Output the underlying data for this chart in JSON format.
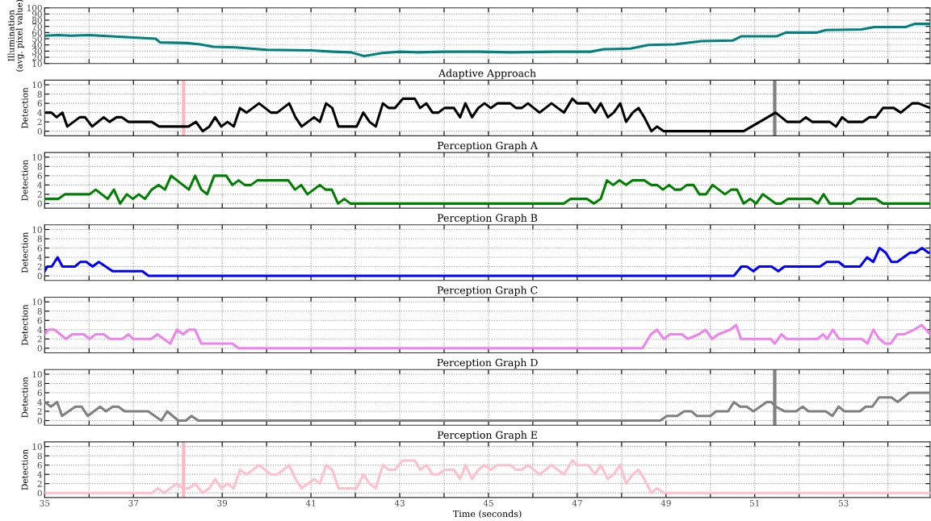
{
  "chart_data": [
    {
      "type": "line",
      "ylabel": "Illumination\n(avg. pixel value)",
      "xlim": [
        35,
        54.95
      ],
      "ylim": [
        10,
        100
      ],
      "yticks": [
        10,
        20,
        30,
        40,
        50,
        60,
        70,
        80,
        90,
        100
      ],
      "xticks": [
        35,
        {
          "value": 36,
          "label": null
        },
        37,
        {
          "value": 38,
          "label": null
        },
        39,
        {
          "value": 40,
          "label": null
        },
        41,
        {
          "value": 42,
          "label": null
        },
        43,
        {
          "value": 44,
          "label": null
        },
        45,
        {
          "value": 46,
          "label": null
        },
        47,
        {
          "value": 48,
          "label": null
        },
        49,
        {
          "value": 50,
          "label": null
        },
        51,
        {
          "value": 52,
          "label": null
        },
        53,
        {
          "value": 54,
          "label": null
        }
      ],
      "tick_labels": "y",
      "grid": true,
      "series": [
        {
          "color": "#008080",
          "x": [
            35.0,
            35.3,
            35.6,
            36.0,
            36.5,
            37.0,
            37.5,
            37.6,
            38.2,
            38.5,
            38.8,
            39.3,
            40.0,
            41.0,
            41.5,
            41.9,
            42.2,
            42.6,
            43.0,
            43.4,
            44.0,
            44.8,
            45.5,
            46.5,
            47.3,
            47.6,
            48.2,
            48.6,
            49.2,
            49.8,
            50.5,
            50.7,
            51.5,
            51.7,
            52.4,
            52.6,
            53.4,
            53.7,
            54.4,
            54.6,
            54.95
          ],
          "values": [
            55,
            56,
            55,
            56,
            54,
            52,
            50,
            44,
            43,
            41,
            37,
            36,
            32,
            31,
            29,
            28,
            22,
            27,
            29,
            28,
            29,
            29,
            28,
            29,
            29,
            33,
            34,
            40,
            41,
            46,
            47,
            54,
            54,
            60,
            60,
            64,
            65,
            69,
            69,
            74,
            74
          ]
        }
      ]
    },
    {
      "type": "line",
      "title": "Adaptive Approach",
      "ylabel": "Detection",
      "xlim": [
        35,
        54.95
      ],
      "ylim": [
        -1,
        11
      ],
      "yticks": [
        0,
        2,
        4,
        6,
        8,
        10
      ],
      "xticks": [
        35,
        {
          "value": 36,
          "label": null
        },
        37,
        {
          "value": 38,
          "label": null
        },
        39,
        {
          "value": 40,
          "label": null
        },
        41,
        {
          "value": 42,
          "label": null
        },
        43,
        {
          "value": 44,
          "label": null
        },
        45,
        {
          "value": 46,
          "label": null
        },
        47,
        {
          "value": 48,
          "label": null
        },
        49,
        {
          "value": 50,
          "label": null
        },
        51,
        {
          "value": 52,
          "label": null
        },
        53,
        {
          "value": 54,
          "label": null
        }
      ],
      "tick_labels": "y",
      "grid": true,
      "ref_lines": [
        {
          "axis": "x",
          "value": 38.13,
          "color": "#ffb6c1"
        },
        {
          "axis": "x",
          "value": 51.45,
          "color": "#808080"
        }
      ],
      "series": [
        {
          "color": "#000000",
          "x": [
            35.03,
            35.15,
            35.27,
            35.4,
            35.51,
            35.65,
            35.79,
            35.91,
            36.07,
            36.2,
            36.33,
            36.46,
            36.62,
            36.74,
            36.89,
            37.41,
            37.58,
            38.1,
            38.24,
            38.41,
            38.56,
            38.71,
            38.84,
            38.98,
            39.12,
            39.26,
            39.4,
            39.55,
            39.83,
            40.1,
            40.24,
            40.51,
            40.65,
            40.79,
            41.07,
            41.2,
            41.34,
            41.48,
            41.62,
            42.03,
            42.18,
            42.32,
            42.46,
            42.62,
            42.75,
            42.89,
            43.07,
            43.34,
            43.46,
            43.6,
            43.74,
            43.87,
            44.01,
            44.22,
            44.36,
            44.48,
            44.63,
            44.77,
            44.91,
            45.05,
            45.2,
            45.49,
            45.62,
            45.75,
            45.89,
            46.15,
            46.42,
            46.7,
            46.89,
            47.0,
            47.25,
            47.4,
            47.53,
            47.69,
            47.82,
            47.97,
            48.1,
            48.25,
            48.38,
            48.51,
            48.67,
            48.8,
            48.95,
            50.75,
            51.47,
            51.73,
            52.02,
            52.15,
            52.3,
            52.69,
            52.83,
            52.97,
            53.1,
            53.43,
            53.58,
            53.73,
            53.89,
            54.13,
            54.29,
            54.55,
            54.69,
            54.95
          ],
          "values": [
            4,
            4,
            3,
            4,
            1,
            2,
            3,
            3,
            1,
            2,
            3,
            2,
            3,
            3,
            2,
            2,
            1,
            1,
            1,
            2,
            0,
            1,
            3,
            1,
            2,
            1,
            5,
            4,
            6,
            4,
            4,
            6,
            3,
            1,
            3,
            2,
            6,
            5,
            1,
            1,
            4,
            2,
            1,
            6,
            5,
            5,
            7,
            7,
            5,
            6,
            4,
            4,
            5,
            5,
            3,
            6,
            3,
            5,
            6,
            5,
            6,
            6,
            5,
            5,
            6,
            4,
            6,
            4,
            7,
            6,
            6,
            4,
            6,
            3,
            4,
            6,
            2,
            4,
            5,
            3,
            0,
            1,
            0,
            0,
            4,
            2,
            2,
            3,
            2,
            2,
            1,
            3,
            2,
            2,
            3,
            3,
            5,
            5,
            4,
            6,
            6,
            5
          ]
        }
      ]
    },
    {
      "type": "line",
      "title": "Perception Graph A",
      "ylabel": "Detection",
      "xlim": [
        35,
        54.95
      ],
      "ylim": [
        -1,
        11
      ],
      "yticks": [
        0,
        2,
        4,
        6,
        8,
        10
      ],
      "xticks": [
        35,
        {
          "value": 36,
          "label": null
        },
        37,
        {
          "value": 38,
          "label": null
        },
        39,
        {
          "value": 40,
          "label": null
        },
        41,
        {
          "value": 42,
          "label": null
        },
        43,
        {
          "value": 44,
          "label": null
        },
        45,
        {
          "value": 46,
          "label": null
        },
        47,
        {
          "value": 48,
          "label": null
        },
        49,
        {
          "value": 50,
          "label": null
        },
        51,
        {
          "value": 52,
          "label": null
        },
        53,
        {
          "value": 54,
          "label": null
        }
      ],
      "tick_labels": "y",
      "grid": true,
      "series": [
        {
          "color": "#008000",
          "x": [
            35.0,
            35.31,
            35.46,
            36.01,
            36.15,
            36.42,
            36.56,
            36.7,
            36.85,
            36.99,
            37.12,
            37.26,
            37.41,
            37.57,
            37.71,
            37.85,
            37.98,
            38.25,
            38.39,
            38.53,
            38.66,
            38.82,
            39.09,
            39.23,
            39.37,
            39.51,
            39.65,
            39.79,
            40.49,
            40.64,
            40.78,
            40.92,
            41.2,
            41.33,
            41.47,
            41.61,
            41.75,
            41.89,
            46.7,
            46.85,
            47.22,
            47.38,
            47.53,
            47.67,
            47.81,
            47.95,
            48.1,
            48.25,
            48.51,
            48.67,
            48.8,
            48.93,
            49.07,
            49.2,
            49.33,
            49.47,
            49.62,
            49.75,
            49.9,
            50.05,
            50.33,
            50.47,
            50.6,
            50.75,
            50.9,
            51.03,
            51.18,
            51.47,
            51.6,
            51.75,
            52.27,
            52.42,
            52.55,
            52.69,
            53.17,
            53.31,
            53.73,
            53.89,
            54.95
          ],
          "values": [
            1,
            1,
            2,
            2,
            3,
            1,
            3,
            0,
            2,
            1,
            2,
            1,
            3,
            4,
            3,
            6,
            5,
            3,
            6,
            3,
            2,
            6,
            6,
            4,
            5,
            4,
            4,
            5,
            5,
            3,
            4,
            2,
            4,
            3,
            3,
            0,
            1,
            0,
            0,
            1,
            1,
            0,
            1,
            5,
            4,
            5,
            4,
            5,
            5,
            4,
            4,
            3,
            4,
            3,
            3,
            4,
            4,
            2,
            2,
            4,
            2,
            3,
            3,
            0,
            1,
            0,
            2,
            0,
            0,
            1,
            1,
            0,
            2,
            0,
            0,
            1,
            1,
            0,
            0
          ]
        }
      ]
    },
    {
      "type": "line",
      "title": "Perception Graph B",
      "ylabel": "Detection",
      "xlim": [
        35,
        54.95
      ],
      "ylim": [
        -1,
        11
      ],
      "yticks": [
        0,
        2,
        4,
        6,
        8,
        10
      ],
      "xticks": [
        35,
        {
          "value": 36,
          "label": null
        },
        37,
        {
          "value": 38,
          "label": null
        },
        39,
        {
          "value": 40,
          "label": null
        },
        41,
        {
          "value": 42,
          "label": null
        },
        43,
        {
          "value": 44,
          "label": null
        },
        45,
        {
          "value": 46,
          "label": null
        },
        47,
        {
          "value": 48,
          "label": null
        },
        49,
        {
          "value": 50,
          "label": null
        },
        51,
        {
          "value": 52,
          "label": null
        },
        53,
        {
          "value": 54,
          "label": null
        }
      ],
      "tick_labels": "y",
      "grid": true,
      "series": [
        {
          "color": "#0000ff",
          "x": [
            35.0,
            35.06,
            35.16,
            35.29,
            35.4,
            35.68,
            35.8,
            35.94,
            36.08,
            36.22,
            36.53,
            37.2,
            37.34,
            50.53,
            50.7,
            50.82,
            50.97,
            51.1,
            51.38,
            51.53,
            51.67,
            52.47,
            52.62,
            52.89,
            53.02,
            53.37,
            53.53,
            53.67,
            53.81,
            53.95,
            54.08,
            54.21,
            54.5,
            54.62,
            54.77,
            54.91,
            54.95
          ],
          "values": [
            1,
            2,
            2,
            4,
            2,
            2,
            3,
            3,
            2,
            3,
            1,
            1,
            0,
            0,
            2,
            2,
            1,
            2,
            2,
            1,
            2,
            2,
            3,
            3,
            2,
            2,
            4,
            3,
            6,
            5,
            3,
            3,
            5,
            5,
            6,
            5,
            5
          ]
        }
      ]
    },
    {
      "type": "line",
      "title": "Perception Graph C",
      "ylabel": "Detection",
      "xlim": [
        35,
        54.95
      ],
      "ylim": [
        -1,
        11
      ],
      "yticks": [
        0,
        2,
        4,
        6,
        8,
        10
      ],
      "xticks": [
        35,
        {
          "value": 36,
          "label": null
        },
        37,
        {
          "value": 38,
          "label": null
        },
        39,
        {
          "value": 40,
          "label": null
        },
        41,
        {
          "value": 42,
          "label": null
        },
        43,
        {
          "value": 44,
          "label": null
        },
        45,
        {
          "value": 46,
          "label": null
        },
        47,
        {
          "value": 48,
          "label": null
        },
        49,
        {
          "value": 50,
          "label": null
        },
        51,
        {
          "value": 52,
          "label": null
        },
        53,
        {
          "value": 54,
          "label": null
        }
      ],
      "tick_labels": "y",
      "grid": true,
      "series": [
        {
          "color": "#ee82ee",
          "x": [
            35.0,
            35.08,
            35.22,
            35.48,
            35.62,
            35.88,
            36.01,
            36.15,
            36.33,
            36.47,
            36.75,
            36.89,
            36.99,
            37.4,
            37.54,
            37.68,
            37.83,
            37.98,
            38.12,
            38.25,
            38.39,
            38.53,
            39.23,
            39.37,
            48.47,
            48.66,
            48.8,
            48.95,
            49.09,
            49.36,
            49.49,
            49.74,
            49.89,
            50.04,
            50.18,
            50.45,
            50.58,
            50.69,
            51.36,
            51.45,
            51.6,
            51.72,
            52.41,
            52.54,
            52.63,
            52.76,
            52.9,
            53.41,
            53.54,
            53.67,
            53.81,
            53.94,
            54.06,
            54.21,
            54.36,
            54.59,
            54.76,
            54.86,
            54.95
          ],
          "values": [
            3,
            4,
            4,
            2,
            3,
            3,
            2,
            3,
            3,
            2,
            2,
            3,
            2,
            2,
            3,
            2,
            1,
            4,
            3,
            4,
            4,
            1,
            1,
            0,
            0,
            3,
            4,
            2,
            3,
            3,
            2,
            3,
            4,
            2,
            3,
            4,
            5,
            2,
            2,
            1,
            3,
            2,
            2,
            3,
            2,
            4,
            2,
            2,
            1,
            4,
            2,
            1,
            1,
            3,
            3,
            4,
            5,
            4,
            3
          ]
        }
      ]
    },
    {
      "type": "line",
      "title": "Perception Graph D",
      "ylabel": "Detection",
      "xlim": [
        35,
        54.95
      ],
      "ylim": [
        -1,
        11
      ],
      "yticks": [
        0,
        2,
        4,
        6,
        8,
        10
      ],
      "xticks": [
        35,
        {
          "value": 36,
          "label": null
        },
        37,
        {
          "value": 38,
          "label": null
        },
        39,
        {
          "value": 40,
          "label": null
        },
        41,
        {
          "value": 42,
          "label": null
        },
        43,
        {
          "value": 44,
          "label": null
        },
        45,
        {
          "value": 46,
          "label": null
        },
        47,
        {
          "value": 48,
          "label": null
        },
        49,
        {
          "value": 50,
          "label": null
        },
        51,
        {
          "value": 52,
          "label": null
        },
        53,
        {
          "value": 54,
          "label": null
        }
      ],
      "tick_labels": "y",
      "grid": true,
      "ref_lines": [
        {
          "axis": "x",
          "value": 51.45,
          "color": "#808080"
        }
      ],
      "series": [
        {
          "color": "#808080",
          "x": [
            35.0,
            35.14,
            35.28,
            35.39,
            35.69,
            35.83,
            35.97,
            36.25,
            36.38,
            36.53,
            36.66,
            36.8,
            37.33,
            37.63,
            37.76,
            38.01,
            38.18,
            38.31,
            38.46,
            48.87,
            49.02,
            49.25,
            49.41,
            49.57,
            49.69,
            50.0,
            50.13,
            50.4,
            50.53,
            50.67,
            50.82,
            50.97,
            51.27,
            51.37,
            51.47,
            51.67,
            51.93,
            52.08,
            52.21,
            52.6,
            52.75,
            52.89,
            53.02,
            53.37,
            53.5,
            53.65,
            53.8,
            54.08,
            54.22,
            54.48,
            54.77,
            54.95
          ],
          "values": [
            4,
            3,
            4,
            1,
            3,
            3,
            1,
            3,
            2,
            3,
            3,
            2,
            2,
            0,
            2,
            0,
            0,
            1,
            0,
            0,
            1,
            1,
            2,
            2,
            1,
            1,
            2,
            2,
            4,
            3,
            3,
            2,
            4,
            4,
            3,
            2,
            2,
            3,
            2,
            2,
            1,
            3,
            2,
            2,
            3,
            3,
            5,
            5,
            4,
            6,
            6,
            6
          ]
        }
      ]
    },
    {
      "type": "line",
      "title": "Perception Graph E",
      "ylabel": "Detection",
      "xlabel": "Time (seconds)",
      "xlim": [
        35,
        54.95
      ],
      "ylim": [
        -1,
        11
      ],
      "yticks": [
        0,
        2,
        4,
        6,
        8,
        10
      ],
      "xticks": [
        35,
        {
          "value": 36,
          "label": null
        },
        37,
        {
          "value": 38,
          "label": null
        },
        39,
        {
          "value": 40,
          "label": null
        },
        41,
        {
          "value": 42,
          "label": null
        },
        43,
        {
          "value": 44,
          "label": null
        },
        45,
        {
          "value": 46,
          "label": null
        },
        47,
        {
          "value": 48,
          "label": null
        },
        49,
        {
          "value": 50,
          "label": null
        },
        51,
        {
          "value": 52,
          "label": null
        },
        53,
        {
          "value": 54,
          "label": null
        }
      ],
      "grid": true,
      "ref_lines": [
        {
          "axis": "x",
          "value": 38.13,
          "color": "#ffb6c1"
        }
      ],
      "series": [
        {
          "color": "#ffc0cb",
          "x": [
            35.0,
            37.41,
            37.55,
            37.69,
            37.97,
            38.11,
            38.25,
            38.39,
            38.56,
            38.71,
            38.84,
            38.98,
            39.12,
            39.26,
            39.4,
            39.55,
            39.83,
            40.1,
            40.24,
            40.51,
            40.65,
            40.79,
            41.07,
            41.2,
            41.34,
            41.48,
            41.62,
            42.03,
            42.18,
            42.32,
            42.46,
            42.62,
            42.75,
            42.89,
            43.07,
            43.34,
            43.46,
            43.6,
            43.74,
            43.87,
            44.01,
            44.22,
            44.36,
            44.48,
            44.63,
            44.77,
            44.91,
            45.05,
            45.2,
            45.49,
            45.62,
            45.75,
            45.89,
            46.15,
            46.42,
            46.7,
            46.89,
            47.0,
            47.25,
            47.4,
            47.53,
            47.69,
            47.82,
            47.97,
            48.1,
            48.25,
            48.38,
            48.51,
            48.67,
            48.8,
            48.95,
            54.95
          ],
          "values": [
            0,
            0,
            1,
            0,
            2,
            1,
            1,
            2,
            0,
            1,
            3,
            1,
            2,
            1,
            5,
            4,
            6,
            4,
            4,
            6,
            3,
            1,
            3,
            2,
            6,
            5,
            1,
            1,
            4,
            2,
            1,
            6,
            5,
            5,
            7,
            7,
            5,
            6,
            4,
            4,
            5,
            5,
            3,
            6,
            3,
            5,
            6,
            5,
            6,
            6,
            5,
            5,
            6,
            4,
            6,
            4,
            7,
            6,
            6,
            4,
            6,
            3,
            4,
            6,
            2,
            4,
            5,
            3,
            0,
            1,
            0,
            0
          ]
        }
      ]
    }
  ]
}
